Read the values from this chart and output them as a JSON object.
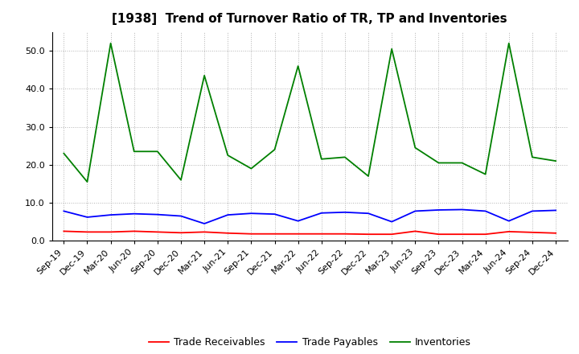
{
  "title": "[1938]  Trend of Turnover Ratio of TR, TP and Inventories",
  "x_labels": [
    "Sep-19",
    "Dec-19",
    "Mar-20",
    "Jun-20",
    "Sep-20",
    "Dec-20",
    "Mar-21",
    "Jun-21",
    "Sep-21",
    "Dec-21",
    "Mar-22",
    "Jun-22",
    "Sep-22",
    "Dec-22",
    "Mar-23",
    "Jun-23",
    "Sep-23",
    "Dec-23",
    "Mar-24",
    "Jun-24",
    "Sep-24",
    "Dec-24"
  ],
  "trade_receivables": [
    2.5,
    2.3,
    2.3,
    2.5,
    2.3,
    2.1,
    2.3,
    2.0,
    1.8,
    1.8,
    1.8,
    1.8,
    1.8,
    1.7,
    1.7,
    2.5,
    1.7,
    1.7,
    1.7,
    2.4,
    2.2,
    2.0
  ],
  "trade_payables": [
    7.8,
    6.2,
    6.8,
    7.1,
    6.9,
    6.5,
    4.5,
    6.8,
    7.2,
    7.0,
    5.2,
    7.3,
    7.5,
    7.2,
    5.0,
    7.8,
    8.1,
    8.2,
    7.8,
    5.2,
    7.8,
    8.0
  ],
  "inventories": [
    23.0,
    15.5,
    52.0,
    23.5,
    23.5,
    16.0,
    43.5,
    22.5,
    19.0,
    24.0,
    46.0,
    21.5,
    22.0,
    17.0,
    50.5,
    24.5,
    20.5,
    20.5,
    17.5,
    52.0,
    22.0,
    21.0
  ],
  "tr_color": "#ff0000",
  "tp_color": "#0000ff",
  "inv_color": "#008000",
  "background_color": "#ffffff",
  "grid_color": "#aaaaaa",
  "ylim": [
    0,
    55
  ],
  "yticks": [
    0.0,
    10.0,
    20.0,
    30.0,
    40.0,
    50.0
  ],
  "legend_labels": [
    "Trade Receivables",
    "Trade Payables",
    "Inventories"
  ],
  "title_fontsize": 11,
  "tick_fontsize": 8,
  "legend_fontsize": 9
}
